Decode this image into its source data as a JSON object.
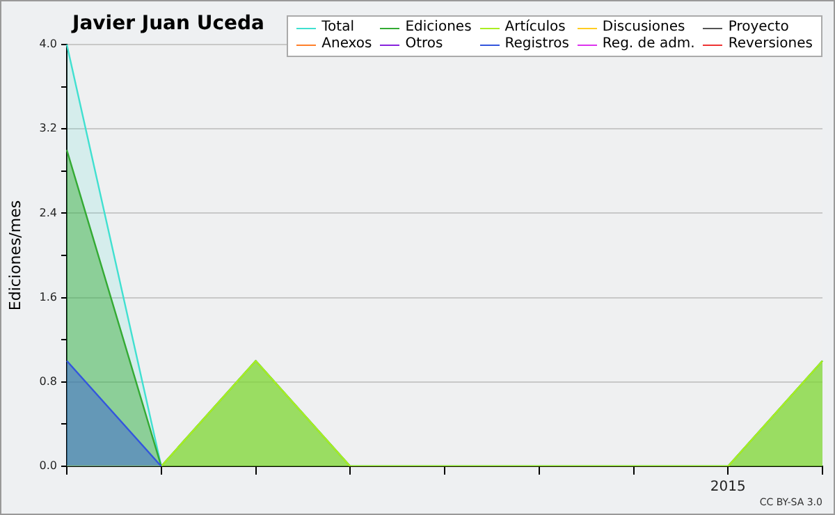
{
  "chart_data": {
    "type": "area",
    "title": "Javier Juan Uceda",
    "ylabel": "Ediciones/mes",
    "categories": [
      null,
      null,
      null,
      null,
      null,
      null,
      null,
      "2015",
      null
    ],
    "ylim": [
      0,
      4
    ],
    "yticks": [
      {
        "value": 0,
        "label": "0.0"
      },
      {
        "value": 0.4,
        "label": null
      },
      {
        "value": 0.8,
        "label": "0.8"
      },
      {
        "value": 1.2,
        "label": null
      },
      {
        "value": 1.6,
        "label": "1.6"
      },
      {
        "value": 2,
        "label": null
      },
      {
        "value": 2.4,
        "label": "2.4"
      },
      {
        "value": 2.8,
        "label": null
      },
      {
        "value": 3.2,
        "label": "3.2"
      },
      {
        "value": 3.6,
        "label": null
      },
      {
        "value": 4,
        "label": "4.0"
      }
    ],
    "grid": "y",
    "legend": "top right",
    "marker": "none",
    "annotations": [
      "CC BY-SA 3.0"
    ],
    "series": [
      {
        "name": "Total",
        "color": "#40e0d0",
        "values": [
          4,
          0,
          1,
          0,
          0,
          0,
          0,
          0,
          1
        ]
      },
      {
        "name": "Ediciones",
        "color": "#33aa33",
        "values": [
          3,
          0,
          1,
          0,
          0,
          0,
          0,
          0,
          1
        ]
      },
      {
        "name": "Artículos",
        "color": "#aaee22",
        "values": [
          0,
          0,
          1,
          0,
          0,
          0,
          0,
          0,
          1
        ]
      },
      {
        "name": "Discusiones",
        "color": "#ffcc22",
        "values": [
          null,
          null,
          null,
          null,
          null,
          null,
          null,
          null,
          null
        ]
      },
      {
        "name": "Proyecto",
        "color": "#555555",
        "values": [
          null,
          null,
          null,
          null,
          null,
          null,
          null,
          null,
          null
        ]
      },
      {
        "name": "Anexos",
        "color": "#ff7f2a",
        "values": [
          null,
          null,
          null,
          null,
          null,
          null,
          null,
          null,
          null
        ]
      },
      {
        "name": "Otros",
        "color": "#8822dd",
        "values": [
          null,
          null,
          null,
          null,
          null,
          null,
          null,
          null,
          null
        ]
      },
      {
        "name": "Registros",
        "color": "#3355dd",
        "values": [
          1,
          0,
          null,
          null,
          null,
          null,
          null,
          null,
          null
        ]
      },
      {
        "name": "Reg. de adm.",
        "color": "#dd33ee",
        "values": [
          null,
          null,
          null,
          null,
          null,
          null,
          null,
          null,
          null
        ]
      },
      {
        "name": "Reversiones",
        "color": "#ee3333",
        "values": [
          null,
          null,
          null,
          null,
          null,
          null,
          null,
          null,
          null
        ]
      }
    ]
  }
}
